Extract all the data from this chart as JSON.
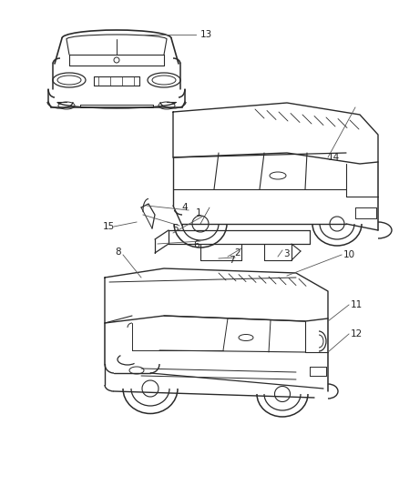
{
  "bg_color": "#ffffff",
  "line_color": "#2a2a2a",
  "callout_color": "#555555",
  "text_color": "#222222",
  "fig_width": 4.38,
  "fig_height": 5.33,
  "dpi": 100
}
